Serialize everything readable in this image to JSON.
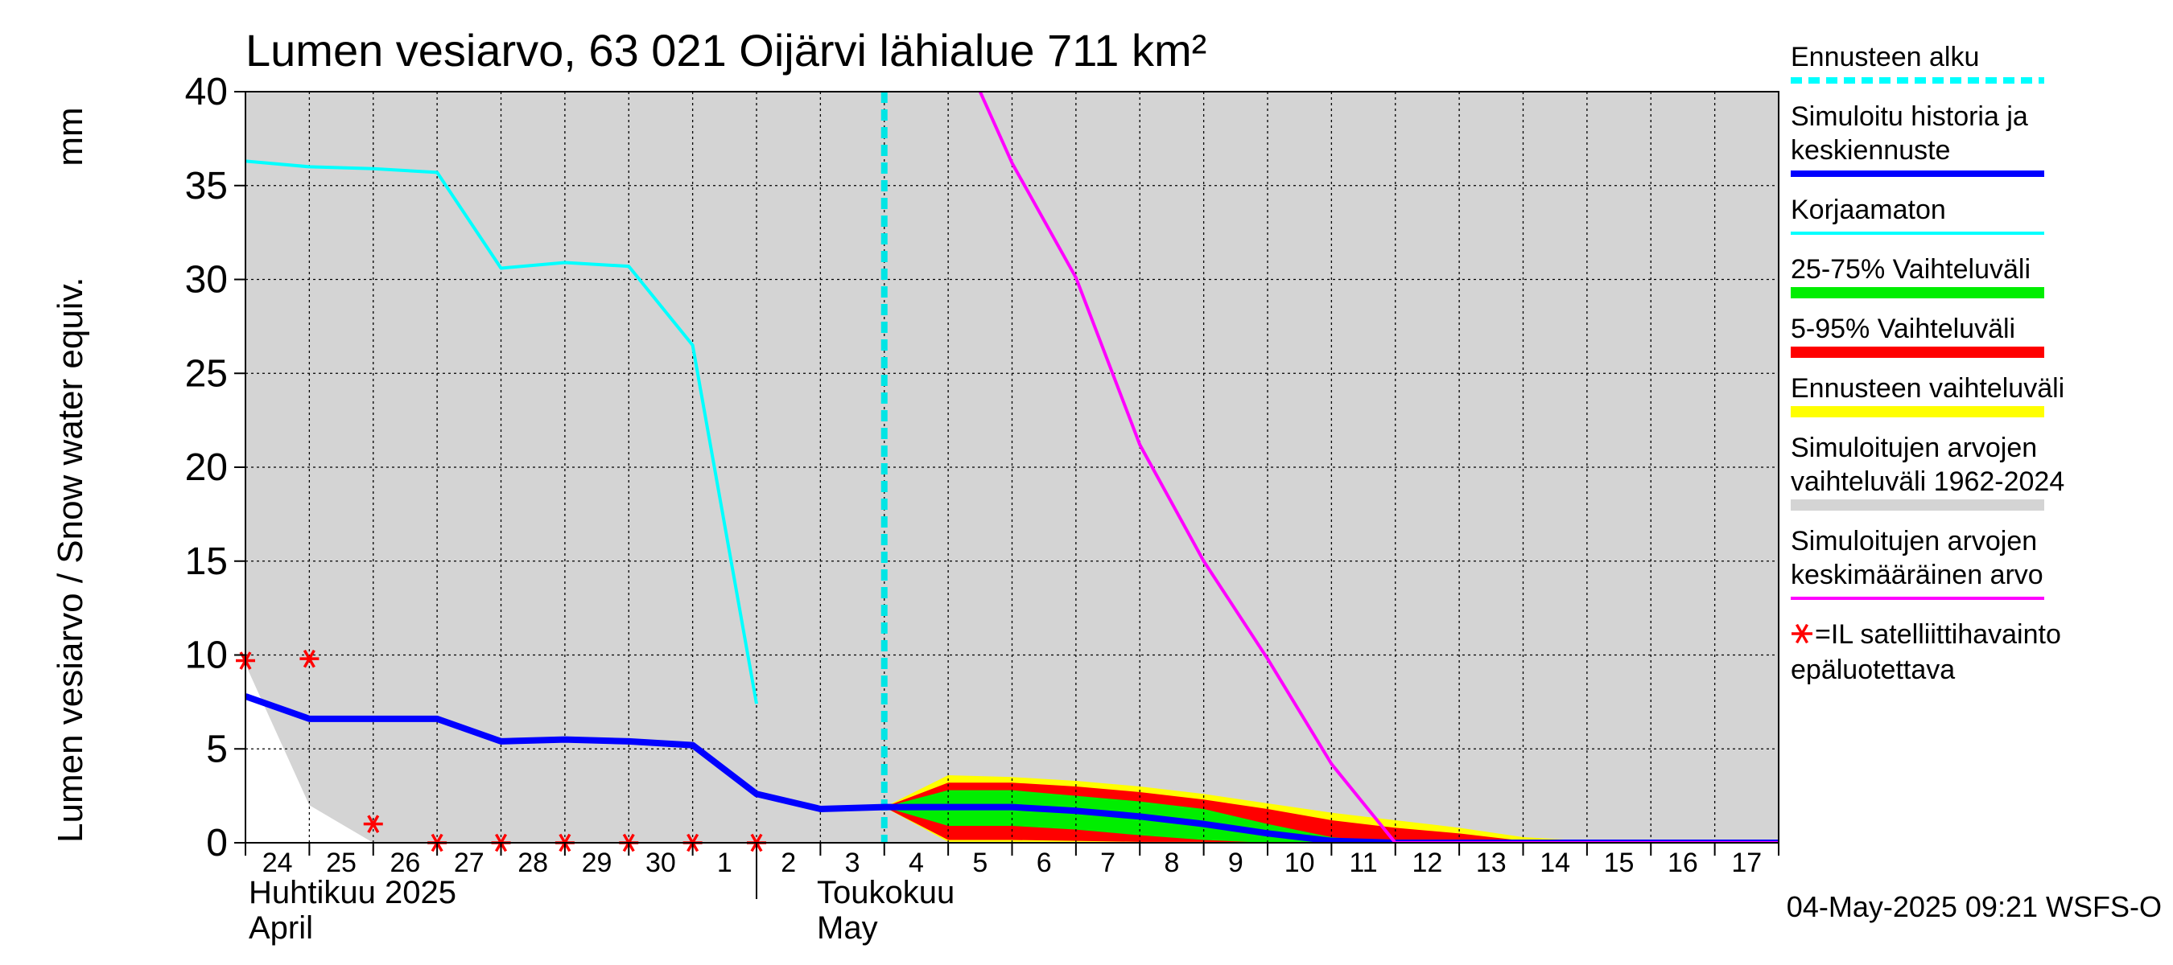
{
  "chart_data": {
    "type": "line",
    "title": "Lumen vesiarvo, 63 021 Oijärvi lähialue 711 km²",
    "ylabel": "Lumen vesiarvo / Snow water equiv.",
    "yunit": "mm",
    "ylim": [
      0,
      40
    ],
    "yticks": [
      0,
      5,
      10,
      15,
      20,
      25,
      30,
      35,
      40
    ],
    "xlim": [
      0,
      24
    ],
    "grid": true,
    "xtick_labels": [
      {
        "x": 0.5,
        "label": "24"
      },
      {
        "x": 1.5,
        "label": "25"
      },
      {
        "x": 2.5,
        "label": "26"
      },
      {
        "x": 3.5,
        "label": "27"
      },
      {
        "x": 4.5,
        "label": "28"
      },
      {
        "x": 5.5,
        "label": "29"
      },
      {
        "x": 6.5,
        "label": "30"
      },
      {
        "x": 7.5,
        "label": "1"
      },
      {
        "x": 8.5,
        "label": "2"
      },
      {
        "x": 9.5,
        "label": "3"
      },
      {
        "x": 10.5,
        "label": "4"
      },
      {
        "x": 11.5,
        "label": "5"
      },
      {
        "x": 12.5,
        "label": "6"
      },
      {
        "x": 13.5,
        "label": "7"
      },
      {
        "x": 14.5,
        "label": "8"
      },
      {
        "x": 15.5,
        "label": "9"
      },
      {
        "x": 16.5,
        "label": "10"
      },
      {
        "x": 17.5,
        "label": "11"
      },
      {
        "x": 18.5,
        "label": "12"
      },
      {
        "x": 19.5,
        "label": "13"
      },
      {
        "x": 20.5,
        "label": "14"
      },
      {
        "x": 21.5,
        "label": "15"
      },
      {
        "x": 22.5,
        "label": "16"
      },
      {
        "x": 23.5,
        "label": "17"
      }
    ],
    "month_labels": [
      {
        "x": 0,
        "line1": "Huhtikuu  2025",
        "line2": "April"
      },
      {
        "x": 8,
        "line1": "Toukokuu",
        "line2": "May"
      }
    ],
    "forecast_start": 10,
    "series": [
      {
        "name": "Simuloitujen arvojen vaihteluväli 1962-2024",
        "kind": "band",
        "color": "#d4d4d4",
        "x": [
          0,
          1,
          2,
          3,
          5,
          7,
          8,
          9,
          10,
          11,
          12,
          13,
          14,
          15,
          16,
          17,
          18,
          19,
          20,
          21,
          22,
          23,
          24
        ],
        "lower": [
          9.5,
          2.0,
          0.0,
          0,
          0,
          0,
          0,
          0,
          0,
          0,
          0,
          0,
          0,
          0,
          0,
          0,
          0,
          0,
          0,
          0,
          0,
          0,
          0
        ],
        "upper": [
          40,
          40,
          40,
          40,
          40,
          40,
          40,
          40,
          40,
          40,
          40,
          40,
          40,
          40,
          40,
          40,
          40,
          40,
          40,
          40,
          40,
          40,
          40
        ]
      },
      {
        "name": "Ennusteen vaihteluväli",
        "kind": "band",
        "color": "#ffff00",
        "x": [
          10,
          11,
          12,
          13,
          14,
          15,
          16,
          17,
          18,
          19,
          20,
          21,
          22,
          23,
          24
        ],
        "lower": [
          1.9,
          0.05,
          0.05,
          0.05,
          0.05,
          0.05,
          0,
          0,
          0,
          0,
          0,
          0,
          0,
          0,
          0
        ],
        "upper": [
          1.9,
          3.6,
          3.5,
          3.3,
          3.0,
          2.6,
          2.1,
          1.6,
          1.2,
          0.8,
          0.3,
          0.1,
          0.1,
          0.1,
          0.1
        ]
      },
      {
        "name": "5-95% Vaihteluväli",
        "kind": "band",
        "color": "#ff0000",
        "x": [
          10,
          11,
          12,
          13,
          14,
          15,
          16,
          17,
          18,
          19,
          20,
          21,
          22,
          23,
          24
        ],
        "lower": [
          1.9,
          0.15,
          0.15,
          0.1,
          0.05,
          0.05,
          0,
          0,
          0,
          0,
          0,
          0,
          0,
          0,
          0
        ],
        "upper": [
          1.9,
          3.2,
          3.2,
          3.0,
          2.7,
          2.3,
          1.8,
          1.2,
          0.8,
          0.5,
          0.1,
          0.05,
          0.05,
          0.05,
          0.05
        ]
      },
      {
        "name": "25-75% Vaihteluväli",
        "kind": "band",
        "color": "#00ee00",
        "x": [
          10,
          11,
          12,
          13,
          14,
          15,
          16,
          17,
          18,
          19,
          20,
          21,
          22,
          23,
          24
        ],
        "lower": [
          1.9,
          0.9,
          0.9,
          0.7,
          0.4,
          0.15,
          0,
          0,
          0,
          0,
          0,
          0,
          0,
          0,
          0
        ],
        "upper": [
          1.9,
          2.8,
          2.8,
          2.5,
          2.2,
          1.8,
          1.0,
          0.3,
          0,
          0,
          0,
          0,
          0,
          0,
          0
        ]
      },
      {
        "name": "Korjaamaton",
        "kind": "line",
        "color": "#00ffff",
        "x": [
          0,
          1,
          2,
          3,
          4,
          5,
          6,
          7,
          8
        ],
        "y": [
          36.3,
          36.0,
          35.9,
          35.7,
          30.6,
          30.9,
          30.7,
          26.5,
          7.4
        ]
      },
      {
        "name": "Simuloitu historia ja keskiennuste",
        "kind": "line",
        "color": "#0000ff",
        "x": [
          0,
          1,
          2,
          3,
          4,
          5,
          6,
          7,
          8,
          9,
          10,
          11,
          12,
          13,
          14,
          15,
          16,
          17,
          18,
          19,
          20,
          21,
          22,
          23,
          24
        ],
        "y": [
          7.8,
          6.6,
          6.6,
          6.6,
          5.4,
          5.5,
          5.4,
          5.2,
          2.6,
          1.8,
          1.9,
          1.9,
          1.9,
          1.7,
          1.4,
          1.0,
          0.5,
          0.1,
          0,
          0,
          0,
          0,
          0,
          0,
          0
        ]
      },
      {
        "name": "Simuloitujen arvojen keskimääräinen arvo",
        "kind": "line",
        "color": "#ff00ff",
        "x": [
          11.5,
          12,
          13,
          14,
          15,
          16,
          17,
          18,
          19,
          20,
          21,
          22,
          23,
          24
        ],
        "y": [
          40,
          36.2,
          30.1,
          21.2,
          15.0,
          9.8,
          4.2,
          0,
          0,
          0,
          0,
          0,
          0,
          0
        ]
      },
      {
        "name": "=IL satelliittihavainto epäluotettava",
        "kind": "scatter",
        "color": "#ff0000",
        "x": [
          0,
          1,
          2,
          3,
          4,
          5,
          6,
          7,
          8
        ],
        "y": [
          9.7,
          9.8,
          1.0,
          0,
          0,
          0,
          0,
          0,
          0
        ]
      }
    ]
  },
  "legend": [
    {
      "key": "forecast_start",
      "line1": "Ennusteen alku",
      "line2": "",
      "color": "#00ffff",
      "style": "dashed"
    },
    {
      "key": "sim_history",
      "line1": "Simuloitu historia ja",
      "line2": "keskiennuste",
      "color": "#0000ff",
      "style": "line"
    },
    {
      "key": "uncorrected",
      "line1": "Korjaamaton",
      "line2": "",
      "color": "#00ffff",
      "style": "line"
    },
    {
      "key": "range_25_75",
      "line1": "25-75% Vaihteluväli",
      "line2": "",
      "color": "#00ee00",
      "style": "thick"
    },
    {
      "key": "range_5_95",
      "line1": "5-95% Vaihteluväli",
      "line2": "",
      "color": "#ff0000",
      "style": "thick"
    },
    {
      "key": "forecast_range",
      "line1": "Ennusteen vaihteluväli",
      "line2": "",
      "color": "#ffff00",
      "style": "thick"
    },
    {
      "key": "sim_range",
      "line1": "Simuloitujen arvojen",
      "line2": "vaihteluväli 1962-2024",
      "color": "#d4d4d4",
      "style": "thick"
    },
    {
      "key": "sim_mean",
      "line1": "Simuloitujen arvojen",
      "line2": "keskimääräinen arvo",
      "color": "#ff00ff",
      "style": "line"
    },
    {
      "key": "satellite",
      "line1": "=IL satelliittihavainto",
      "line2": "epäluotettava",
      "color": "#ff0000",
      "style": "marker"
    }
  ],
  "footer": {
    "timestamp": "04-May-2025 09:21 WSFS-O"
  }
}
